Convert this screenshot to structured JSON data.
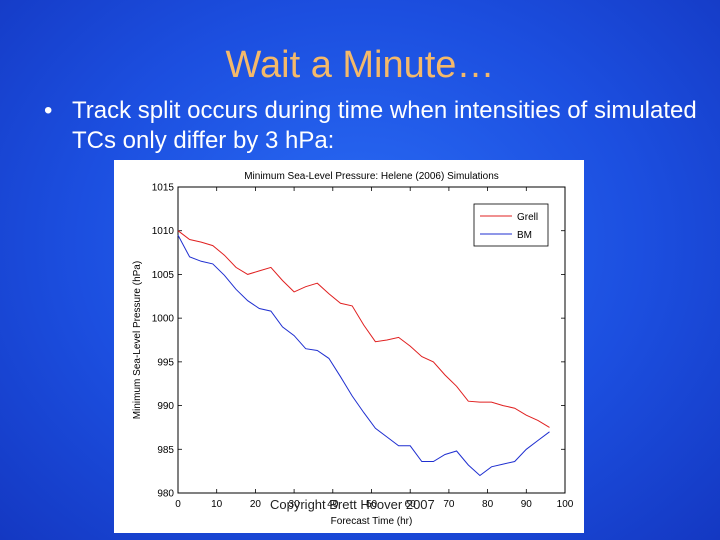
{
  "slide": {
    "title": "Wait a Minute…",
    "bullet_symbol": "•",
    "bullet_text": "Track split occurs during time when intensities of simulated TCs only differ by 3 hPa:",
    "copyright": "Copyright Brett Hoover 2007"
  },
  "colors": {
    "title": "#f4b96a",
    "text": "#ffffff",
    "series_grell": "#e02020",
    "series_bm": "#1f2fd0"
  },
  "chart_data": {
    "type": "line",
    "title": "Minimum Sea-Level Pressure: Helene (2006) Simulations",
    "xlabel": "Forecast Time (hr)",
    "ylabel": "Minimum Sea-Level Pressure (hPa)",
    "xlim": [
      0,
      100
    ],
    "ylim": [
      980,
      1015
    ],
    "xticks": [
      0,
      10,
      20,
      30,
      40,
      50,
      60,
      70,
      80,
      90,
      100
    ],
    "yticks": [
      980,
      985,
      990,
      995,
      1000,
      1005,
      1010,
      1015
    ],
    "legend_position": "top-right",
    "series": [
      {
        "name": "Grell",
        "color": "#e02020",
        "x": [
          0,
          3,
          6,
          9,
          12,
          15,
          18,
          21,
          24,
          27,
          30,
          33,
          36,
          39,
          42,
          45,
          48,
          51,
          54,
          57,
          60,
          63,
          66,
          69,
          72,
          75,
          78,
          81,
          84,
          87,
          90,
          93,
          96
        ],
        "values": [
          1010,
          1009,
          1008.7,
          1008.3,
          1007.2,
          1005.8,
          1005,
          1005.4,
          1005.8,
          1004.3,
          1003,
          1003.6,
          1004,
          1002.8,
          1001.7,
          1001.4,
          999.2,
          997.3,
          997.5,
          997.8,
          996.8,
          995.6,
          995,
          993.5,
          992.2,
          990.5,
          990.4,
          990.4,
          990,
          989.7,
          988.9,
          988.3,
          987.5
        ]
      },
      {
        "name": "BM",
        "color": "#1f2fd0",
        "x": [
          0,
          3,
          6,
          9,
          12,
          15,
          18,
          21,
          24,
          27,
          30,
          33,
          36,
          39,
          42,
          45,
          48,
          51,
          54,
          57,
          60,
          63,
          66,
          69,
          72,
          75,
          78,
          81,
          84,
          87,
          90,
          93,
          96
        ],
        "values": [
          1009.5,
          1007,
          1006.5,
          1006.2,
          1004.9,
          1003.3,
          1002,
          1001.1,
          1000.8,
          999,
          998,
          996.5,
          996.3,
          995.4,
          993.3,
          991.1,
          989.2,
          987.4,
          986.4,
          985.4,
          985.4,
          983.6,
          983.6,
          984.4,
          984.8,
          983.2,
          982,
          983,
          983.3,
          983.6,
          985,
          986,
          987
        ]
      }
    ]
  }
}
